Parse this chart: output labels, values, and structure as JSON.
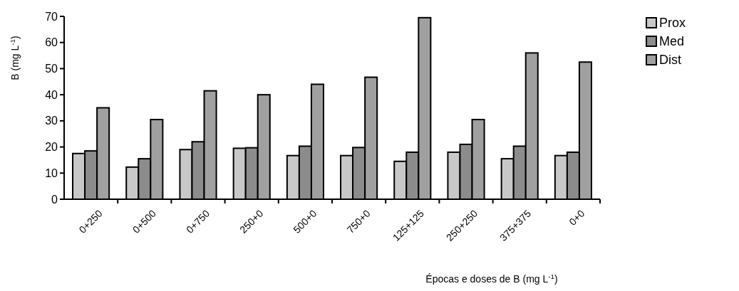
{
  "chart_data": {
    "type": "bar",
    "xlabel": "Épocas e doses de B (mg L$^{-1}$)",
    "ylabel": "B (mg L$^{-1}$)",
    "categories": [
      "0+250",
      "0+500",
      "0+750",
      "250+0",
      "500+0",
      "750+0",
      "125+125",
      "250+250",
      "375+375",
      "0+0"
    ],
    "series": [
      {
        "name": "Prox",
        "color": "#c8c8c8",
        "values": [
          17.5,
          12.3,
          19,
          19.5,
          16.7,
          16.7,
          14.5,
          18,
          15.5,
          16.7
        ]
      },
      {
        "name": "Med",
        "color": "#8c8c8c",
        "values": [
          18.5,
          15.5,
          22,
          19.7,
          20.3,
          19.8,
          18,
          21,
          20.3,
          18
        ]
      },
      {
        "name": "Dist",
        "color": "#a0a0a0",
        "values": [
          35,
          30.5,
          41.5,
          40,
          44,
          46.7,
          69.5,
          30.5,
          56,
          52.5
        ]
      }
    ],
    "ylim": [
      0,
      70
    ],
    "yticks": [
      0,
      10,
      20,
      30,
      40,
      50,
      60,
      70
    ],
    "grid": false,
    "legend": "top right"
  }
}
